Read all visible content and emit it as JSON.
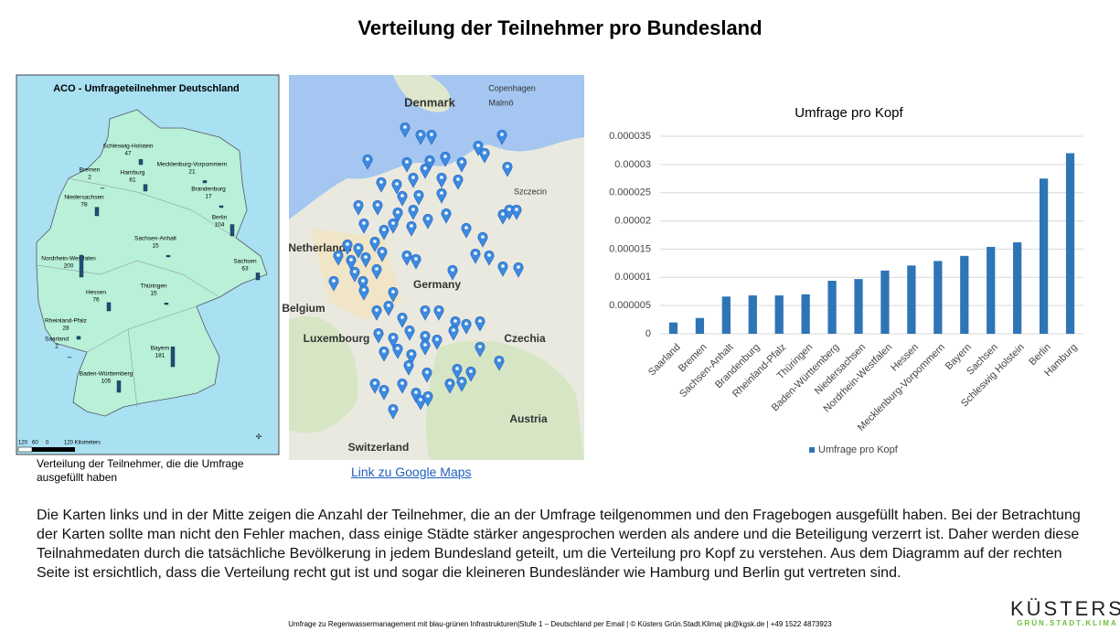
{
  "title": "Verteilung der Teilnehmer pro Bundesland",
  "left_map": {
    "title": "ACO - Umfrageteilnehmer Deutschland",
    "states": [
      {
        "name": "Schleswig-Holstein",
        "count": 47
      },
      {
        "name": "Hamburg",
        "count": 61
      },
      {
        "name": "Mecklenburg-Vorpommern",
        "count": 21
      },
      {
        "name": "Bremen",
        "count": 2
      },
      {
        "name": "Niedersachsen",
        "count": 78
      },
      {
        "name": "Brandenburg",
        "count": 17
      },
      {
        "name": "Berlin",
        "count": 104
      },
      {
        "name": "Sachsen-Anhalt",
        "count": 15
      },
      {
        "name": "Sachsen",
        "count": 63
      },
      {
        "name": "Nordrhein-Westfalen",
        "count": 200
      },
      {
        "name": "Hessen",
        "count": 76
      },
      {
        "name": "Thüringen",
        "count": 15
      },
      {
        "name": "Rheinland-Pfalz",
        "count": 28
      },
      {
        "name": "Saarland",
        "count": 2
      },
      {
        "name": "Bayern",
        "count": 181
      },
      {
        "name": "Baden-Württemberg",
        "count": 105
      }
    ],
    "scale_labels": [
      "120",
      "60",
      "0",
      "120 Kilometers"
    ],
    "caption": "Verteilung der Teilnehmer, die die Umfrage ausgefüllt haben"
  },
  "google_map": {
    "labels": [
      "Denmark",
      "Copenhagen",
      "Malmö",
      "Szczecin",
      "Netherlands",
      "Germany",
      "Belgium",
      "Luxembourg",
      "Czechia",
      "Austria",
      "Switzerland"
    ],
    "link": "Link zu Google Maps"
  },
  "chart_data": {
    "type": "bar",
    "title": "Umfrage pro Kopf",
    "categories": [
      "Saarland",
      "Bremen",
      "Sachsen-Anhalt",
      "Brandenburg",
      "Rheinland-Pfalz",
      "Thüringen",
      "Baden-Württemberg",
      "Niedersachsen",
      "Nordrhein-Westfalen",
      "Hessen",
      "Mecklenburg-Vorpommern",
      "Bayern",
      "Sachsen",
      "Schleswig Holstein",
      "Berlin",
      "Hamburg"
    ],
    "series": [
      {
        "name": "Umfrage pro Kopf",
        "color": "#2e75b6",
        "values": [
          2e-06,
          2.8e-06,
          6.6e-06,
          6.8e-06,
          6.8e-06,
          7e-06,
          9.4e-06,
          9.7e-06,
          1.12e-05,
          1.21e-05,
          1.29e-05,
          1.38e-05,
          1.54e-05,
          1.62e-05,
          2.75e-05,
          3.2e-05
        ]
      }
    ],
    "ylim": [
      0,
      3.5e-05
    ],
    "yticks": [
      0,
      5e-06,
      1e-05,
      1.5e-05,
      2e-05,
      2.5e-05,
      3e-05,
      3.5e-05
    ],
    "grid": true,
    "legend": "bottom"
  },
  "body_text": "Die Karten links und in der Mitte zeigen die Anzahl der Teilnehmer, die an der Umfrage teilgenommen und den Fragebogen ausgefüllt haben. Bei der Betrachtung der Karten sollte man nicht den Fehler machen, dass einige Städte stärker angesprochen werden als andere und die Beteiligung verzerrt ist. Daher werden diese Teilnahmedaten durch die tatsächliche Bevölkerung in jedem Bundesland geteilt, um die Verteilung pro Kopf zu verstehen. Aus dem Diagramm auf der rechten Seite ist ersichtlich, dass die Verteilung recht gut ist und sogar die kleineren Bundesländer wie Hamburg und Berlin gut vertreten sind.",
  "footer": "Umfrage zu Regenwassermanagement mit blau-grünen Infrastrukturen|Stufe 1 – Deutschland per Email | © Küsters Grün.Stadt.Klima| pk@kgsk.de | +49 1522 4873923",
  "logo": {
    "name": "KÜSTERS",
    "tagline": "GRÜN.STADT.KLIMA"
  }
}
